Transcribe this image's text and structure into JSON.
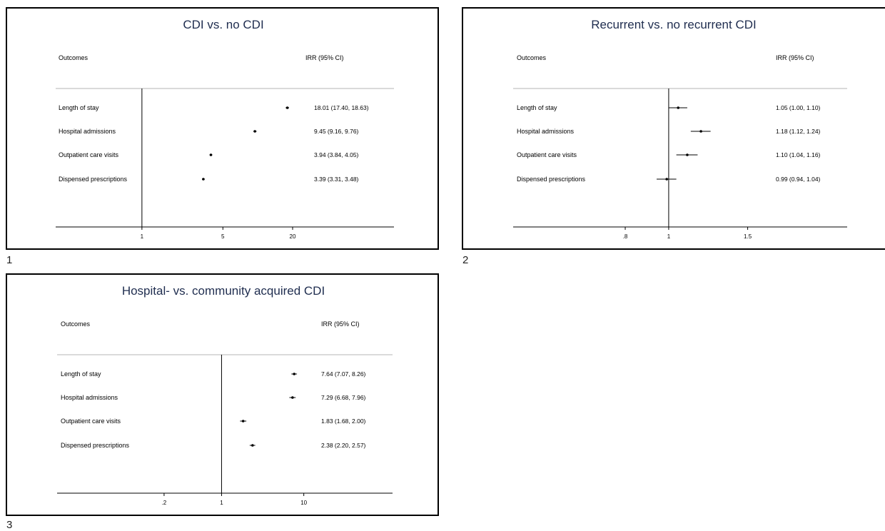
{
  "chart_data": [
    {
      "type": "scatter",
      "panel_number": "1",
      "title": "CDI vs. no CDI",
      "column_headers": {
        "outcomes": "Outcomes",
        "estimate": "IRR (95% CI)"
      },
      "x_scale": "log",
      "xlim": [
        0.18,
        150
      ],
      "reference_line": 1,
      "x_ticks": [
        {
          "value": 1,
          "label": "1"
        },
        {
          "value": 5,
          "label": "5"
        },
        {
          "value": 20,
          "label": "20"
        }
      ],
      "rows": [
        {
          "label": "Length of stay",
          "irr": 18.01,
          "lo": 17.4,
          "hi": 18.63,
          "text": "18.01 (17.40, 18.63)"
        },
        {
          "label": "Hospital admissions",
          "irr": 9.45,
          "lo": 9.16,
          "hi": 9.76,
          "text": "9.45 (9.16, 9.76)"
        },
        {
          "label": "Outpatient care visits",
          "irr": 3.94,
          "lo": 3.84,
          "hi": 4.05,
          "text": "3.94 (3.84, 4.05)"
        },
        {
          "label": "Dispensed prescriptions",
          "irr": 3.39,
          "lo": 3.31,
          "hi": 3.48,
          "text": "3.39 (3.31, 3.48)"
        }
      ]
    },
    {
      "type": "scatter",
      "panel_number": "2",
      "title": "Recurrent vs. no recurrent CDI",
      "column_headers": {
        "outcomes": "Outcomes",
        "estimate": "IRR (95% CI)"
      },
      "x_scale": "log",
      "xlim": [
        0.45,
        2.5
      ],
      "reference_line": 1,
      "x_ticks": [
        {
          "value": 0.8,
          "label": ".8"
        },
        {
          "value": 1,
          "label": "1"
        },
        {
          "value": 1.5,
          "label": "1.5"
        }
      ],
      "rows": [
        {
          "label": "Length of stay",
          "irr": 1.05,
          "lo": 1.0,
          "hi": 1.1,
          "text": "1.05 (1.00, 1.10)"
        },
        {
          "label": "Hospital admissions",
          "irr": 1.18,
          "lo": 1.12,
          "hi": 1.24,
          "text": "1.18 (1.12, 1.24)"
        },
        {
          "label": "Outpatient care visits",
          "irr": 1.1,
          "lo": 1.04,
          "hi": 1.16,
          "text": "1.10 (1.04, 1.16)"
        },
        {
          "label": "Dispensed prescriptions",
          "irr": 0.99,
          "lo": 0.94,
          "hi": 1.04,
          "text": "0.99 (0.94, 1.04)"
        }
      ]
    },
    {
      "type": "scatter",
      "panel_number": "3",
      "title": "Hospital- vs. community acquired CDI",
      "column_headers": {
        "outcomes": "Outcomes",
        "estimate": "IRR (95% CI)"
      },
      "x_scale": "log",
      "xlim": [
        0.01,
        120
      ],
      "reference_line": 1,
      "x_ticks": [
        {
          "value": 0.2,
          "label": ".2"
        },
        {
          "value": 1,
          "label": "1"
        },
        {
          "value": 10,
          "label": "10"
        }
      ],
      "rows": [
        {
          "label": "Length of stay",
          "irr": 7.64,
          "lo": 7.07,
          "hi": 8.26,
          "text": "7.64 (7.07, 8.26)"
        },
        {
          "label": "Hospital admissions",
          "irr": 7.29,
          "lo": 6.68,
          "hi": 7.96,
          "text": "7.29 (6.68, 7.96)"
        },
        {
          "label": "Outpatient care visits",
          "irr": 1.83,
          "lo": 1.68,
          "hi": 2.0,
          "text": "1.83 (1.68, 2.00)"
        },
        {
          "label": "Dispensed prescriptions",
          "irr": 2.38,
          "lo": 2.2,
          "hi": 2.57,
          "text": "2.38 (2.20, 2.57)"
        }
      ]
    }
  ]
}
